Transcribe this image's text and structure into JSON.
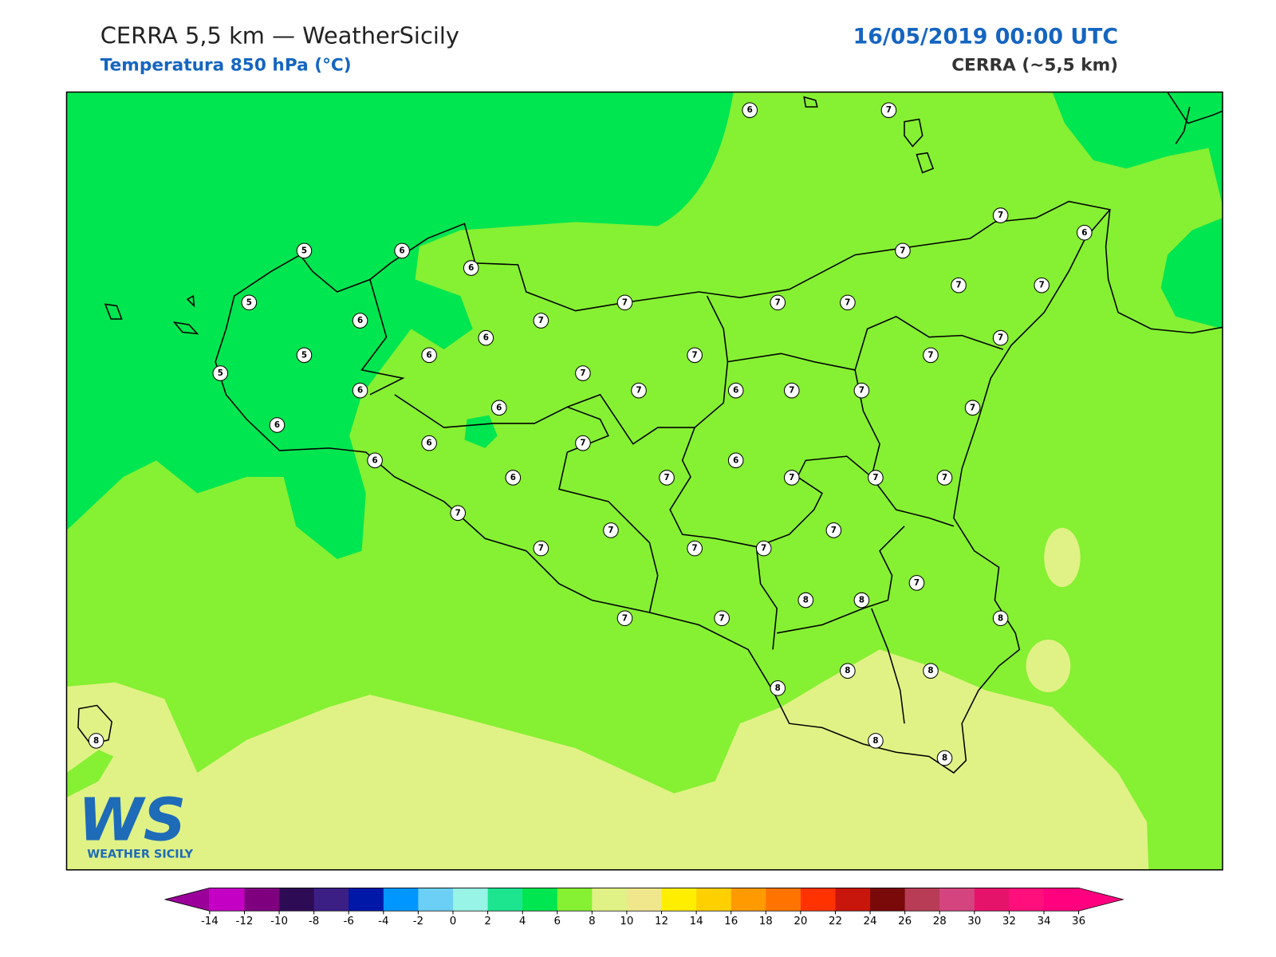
{
  "header": {
    "title": "CERRA 5,5 km — WeatherSicily",
    "subtitle": "Temperatura 850 hPa (°C)",
    "date": "16/05/2019 00:00 UTC",
    "model": "CERRA (~5,5 km)"
  },
  "stations": [
    6,
    7,
    7,
    6,
    5,
    6,
    6,
    5,
    7,
    7,
    7,
    7,
    7,
    7,
    6,
    7,
    6,
    5,
    6,
    7,
    7,
    7,
    5,
    7,
    6,
    7,
    6,
    7,
    7,
    7,
    6,
    6,
    6,
    7,
    6,
    6,
    6,
    7,
    7,
    7,
    7,
    7,
    7,
    7,
    7,
    7,
    7,
    7,
    8,
    8,
    8,
    7,
    7,
    8,
    8,
    8,
    8,
    8,
    8
  ],
  "logo": {
    "mark": "WS",
    "text": "WEATHER SICILY"
  },
  "colorbar": {
    "ticks": [
      -14,
      -12,
      -10,
      -8,
      -6,
      -4,
      -2,
      0,
      2,
      4,
      6,
      8,
      10,
      12,
      14,
      16,
      18,
      20,
      22,
      24,
      26,
      28,
      30,
      32,
      34,
      36
    ],
    "under": "#9b009b",
    "colors": [
      "#c400c4",
      "#7f007f",
      "#2e0b55",
      "#3b1f85",
      "#0018a8",
      "#0096ff",
      "#6ccff6",
      "#98f4e6",
      "#1de58f",
      "#00e650",
      "#86f032",
      "#e0f285",
      "#f0e68c",
      "#ffee00",
      "#ffd000",
      "#ff9a00",
      "#ff7400",
      "#ff3200",
      "#c8160c",
      "#7a0a0a",
      "#b83c55",
      "#d4457f",
      "#e6136b",
      "#ff0f7b",
      "#ff007f"
    ],
    "over": "#ff0080"
  }
}
